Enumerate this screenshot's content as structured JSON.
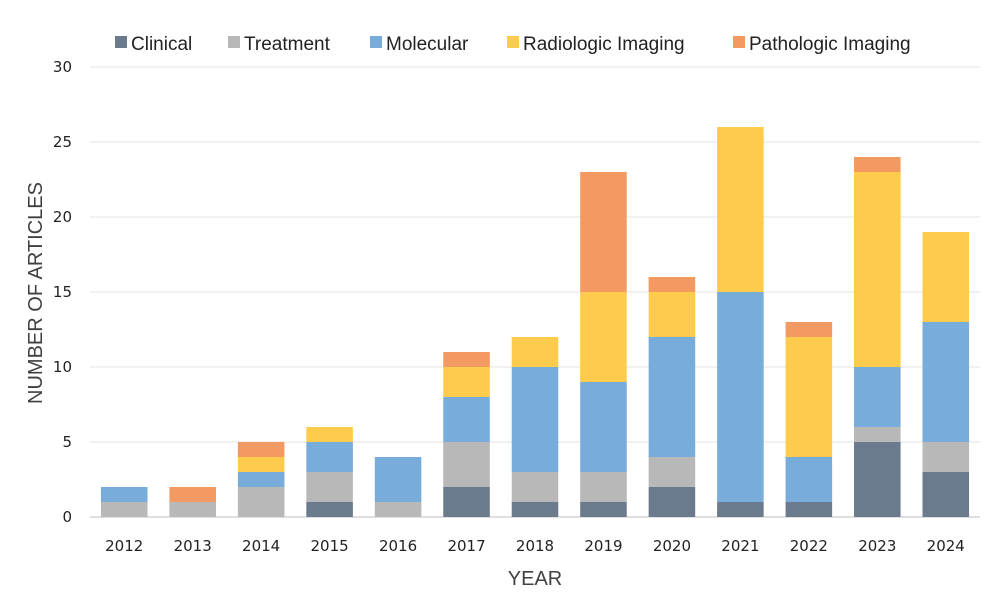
{
  "chart_data": {
    "type": "bar",
    "stacked": true,
    "xlabel": "YEAR",
    "ylabel": "NUMBER OF ARTICLES",
    "ylim": [
      0,
      30
    ],
    "yticks": [
      0,
      5,
      10,
      15,
      20,
      25,
      30
    ],
    "grid": true,
    "legend_position": "top",
    "categories": [
      "2012",
      "2013",
      "2014",
      "2015",
      "2016",
      "2017",
      "2018",
      "2019",
      "2020",
      "2021",
      "2022",
      "2023",
      "2024"
    ],
    "series": [
      {
        "name": "Clinical",
        "color": "#6b7a8c",
        "values": [
          0,
          0,
          0,
          1,
          0,
          2,
          1,
          1,
          2,
          1,
          1,
          5,
          3
        ]
      },
      {
        "name": "Treatment",
        "color": "#b8b8b8",
        "values": [
          1,
          1,
          2,
          2,
          1,
          3,
          2,
          2,
          2,
          0,
          0,
          1,
          2
        ]
      },
      {
        "name": "Molecular",
        "color": "#78acdb",
        "values": [
          1,
          0,
          1,
          2,
          3,
          3,
          7,
          6,
          8,
          14,
          3,
          4,
          8
        ]
      },
      {
        "name": "Radiologic Imaging",
        "color": "#ffcb4c",
        "values": [
          0,
          0,
          1,
          1,
          0,
          2,
          2,
          6,
          3,
          11,
          8,
          13,
          6
        ]
      },
      {
        "name": "Pathologic Imaging",
        "color": "#f39a62",
        "values": [
          0,
          1,
          1,
          0,
          0,
          1,
          0,
          8,
          1,
          0,
          1,
          1,
          0
        ]
      }
    ]
  }
}
